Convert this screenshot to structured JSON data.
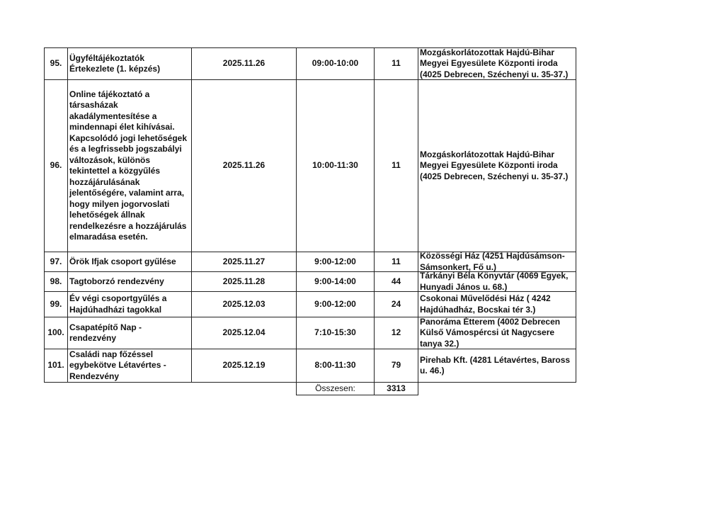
{
  "rows": [
    {
      "num": "95.",
      "title": "Ügyféltájékoztatók Értekezlete (1. képzés)",
      "date": "2025.11.26",
      "time": "09:00-10:00",
      "count": "11",
      "location": "Mozgáskorlátozottak Hajdú-Bihar Megyei Egyesülete Központi iroda (4025 Debrecen, Széchenyi u. 35-37.)"
    },
    {
      "num": "96.",
      "title": "Online tájékoztató a társasházak akadálymentesítése a mindennapi élet kihívásai. Kapcsolódó jogi lehetőségek és a legfrissebb jogszabályi változások, különös tekintettel a közgyűlés hozzájárulásának jelentőségére, valamint arra, hogy milyen jogorvoslati lehetőségek állnak rendelkezésre a hozzájárulás elmaradása esetén.",
      "date": "2025.11.26",
      "time": "10:00-11:30",
      "count": "11",
      "location": "Mozgáskorlátozottak Hajdú-Bihar Megyei Egyesülete Központi iroda (4025 Debrecen, Széchenyi u. 35-37.)"
    },
    {
      "num": "97.",
      "title": "Örök Ifjak csoport gyűlése",
      "date": "2025.11.27",
      "time": "9:00-12:00",
      "count": "11",
      "location": "Közösségi Ház (4251 Hajdúsámson-Sámsonkert, Fő u.)"
    },
    {
      "num": "98.",
      "title": "Tagtoborzó rendezvény",
      "date": "2025.11.28",
      "time": "9:00-14:00",
      "count": "44",
      "location": "Tárkányi Béla Könyvtár (4069 Egyek, Hunyadi János u. 68.)"
    },
    {
      "num": "99.",
      "title": "Év végi csoportgyűlés a Hajdúhadházi tagokkal",
      "date": "2025.12.03",
      "time": "9:00-12:00",
      "count": "24",
      "location": "Csokonai Művelődési Ház ( 4242 Hajdúhadház, Bocskai tér 3.)"
    },
    {
      "num": "100.",
      "title": "Csapatépítő Nap - rendezvény",
      "date": "2025.12.04",
      "time": "7:10-15:30",
      "count": "12",
      "location": "Panoráma Étterem (4002 Debrecen Külső Vámospércsi út Nagycsere tanya 32.)"
    },
    {
      "num": "101.",
      "title": "Családi nap főzéssel egybekötve Létavértes - Rendezvény",
      "date": "2025.12.19",
      "time": "8:00-11:30",
      "count": "79",
      "location": "Pirehab Kft. (4281 Létavértes, Baross u. 46.)"
    }
  ],
  "total": {
    "label": "Összesen:",
    "value": "3313"
  }
}
